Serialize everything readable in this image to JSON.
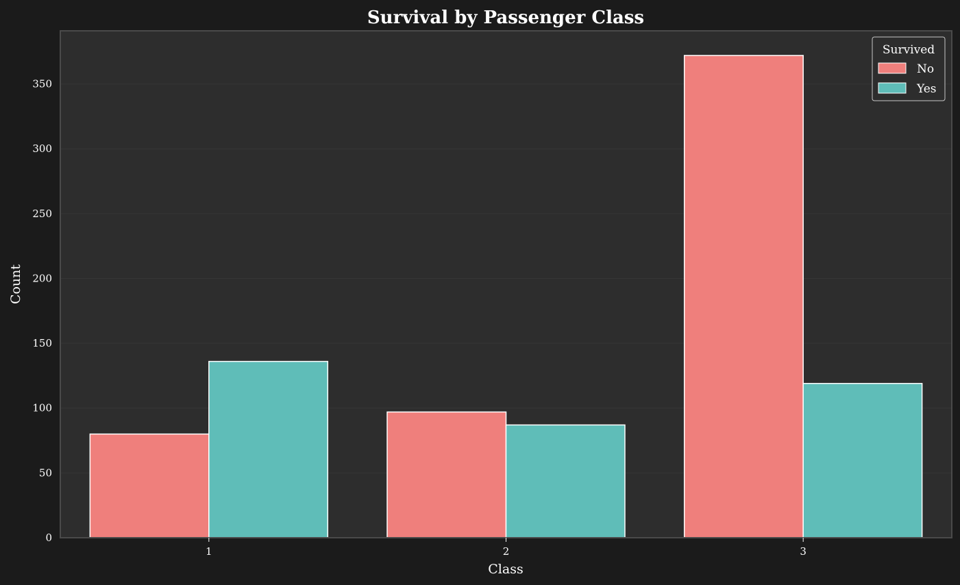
{
  "chart_data": {
    "type": "bar",
    "title": "Survival by Passenger Class",
    "xlabel": "Class",
    "ylabel": "Count",
    "categories": [
      "1",
      "2",
      "3"
    ],
    "series": [
      {
        "name": "No",
        "values": [
          80,
          97,
          372
        ],
        "color": "#ef7f7c"
      },
      {
        "name": "Yes",
        "values": [
          136,
          87,
          119
        ],
        "color": "#5fbdb8"
      }
    ],
    "ylim": [
      0,
      391
    ],
    "yticks": [
      0,
      50,
      100,
      150,
      200,
      250,
      300,
      350
    ],
    "grid": true,
    "legend": {
      "title": "Survived",
      "placement": "top-right"
    }
  },
  "colors": {
    "figure_background": "#1b1b1b",
    "plot_background": "#2d2d2d",
    "grid": "#363636",
    "bar_edge": "#ffffff",
    "frame": "#4a4a4a"
  }
}
